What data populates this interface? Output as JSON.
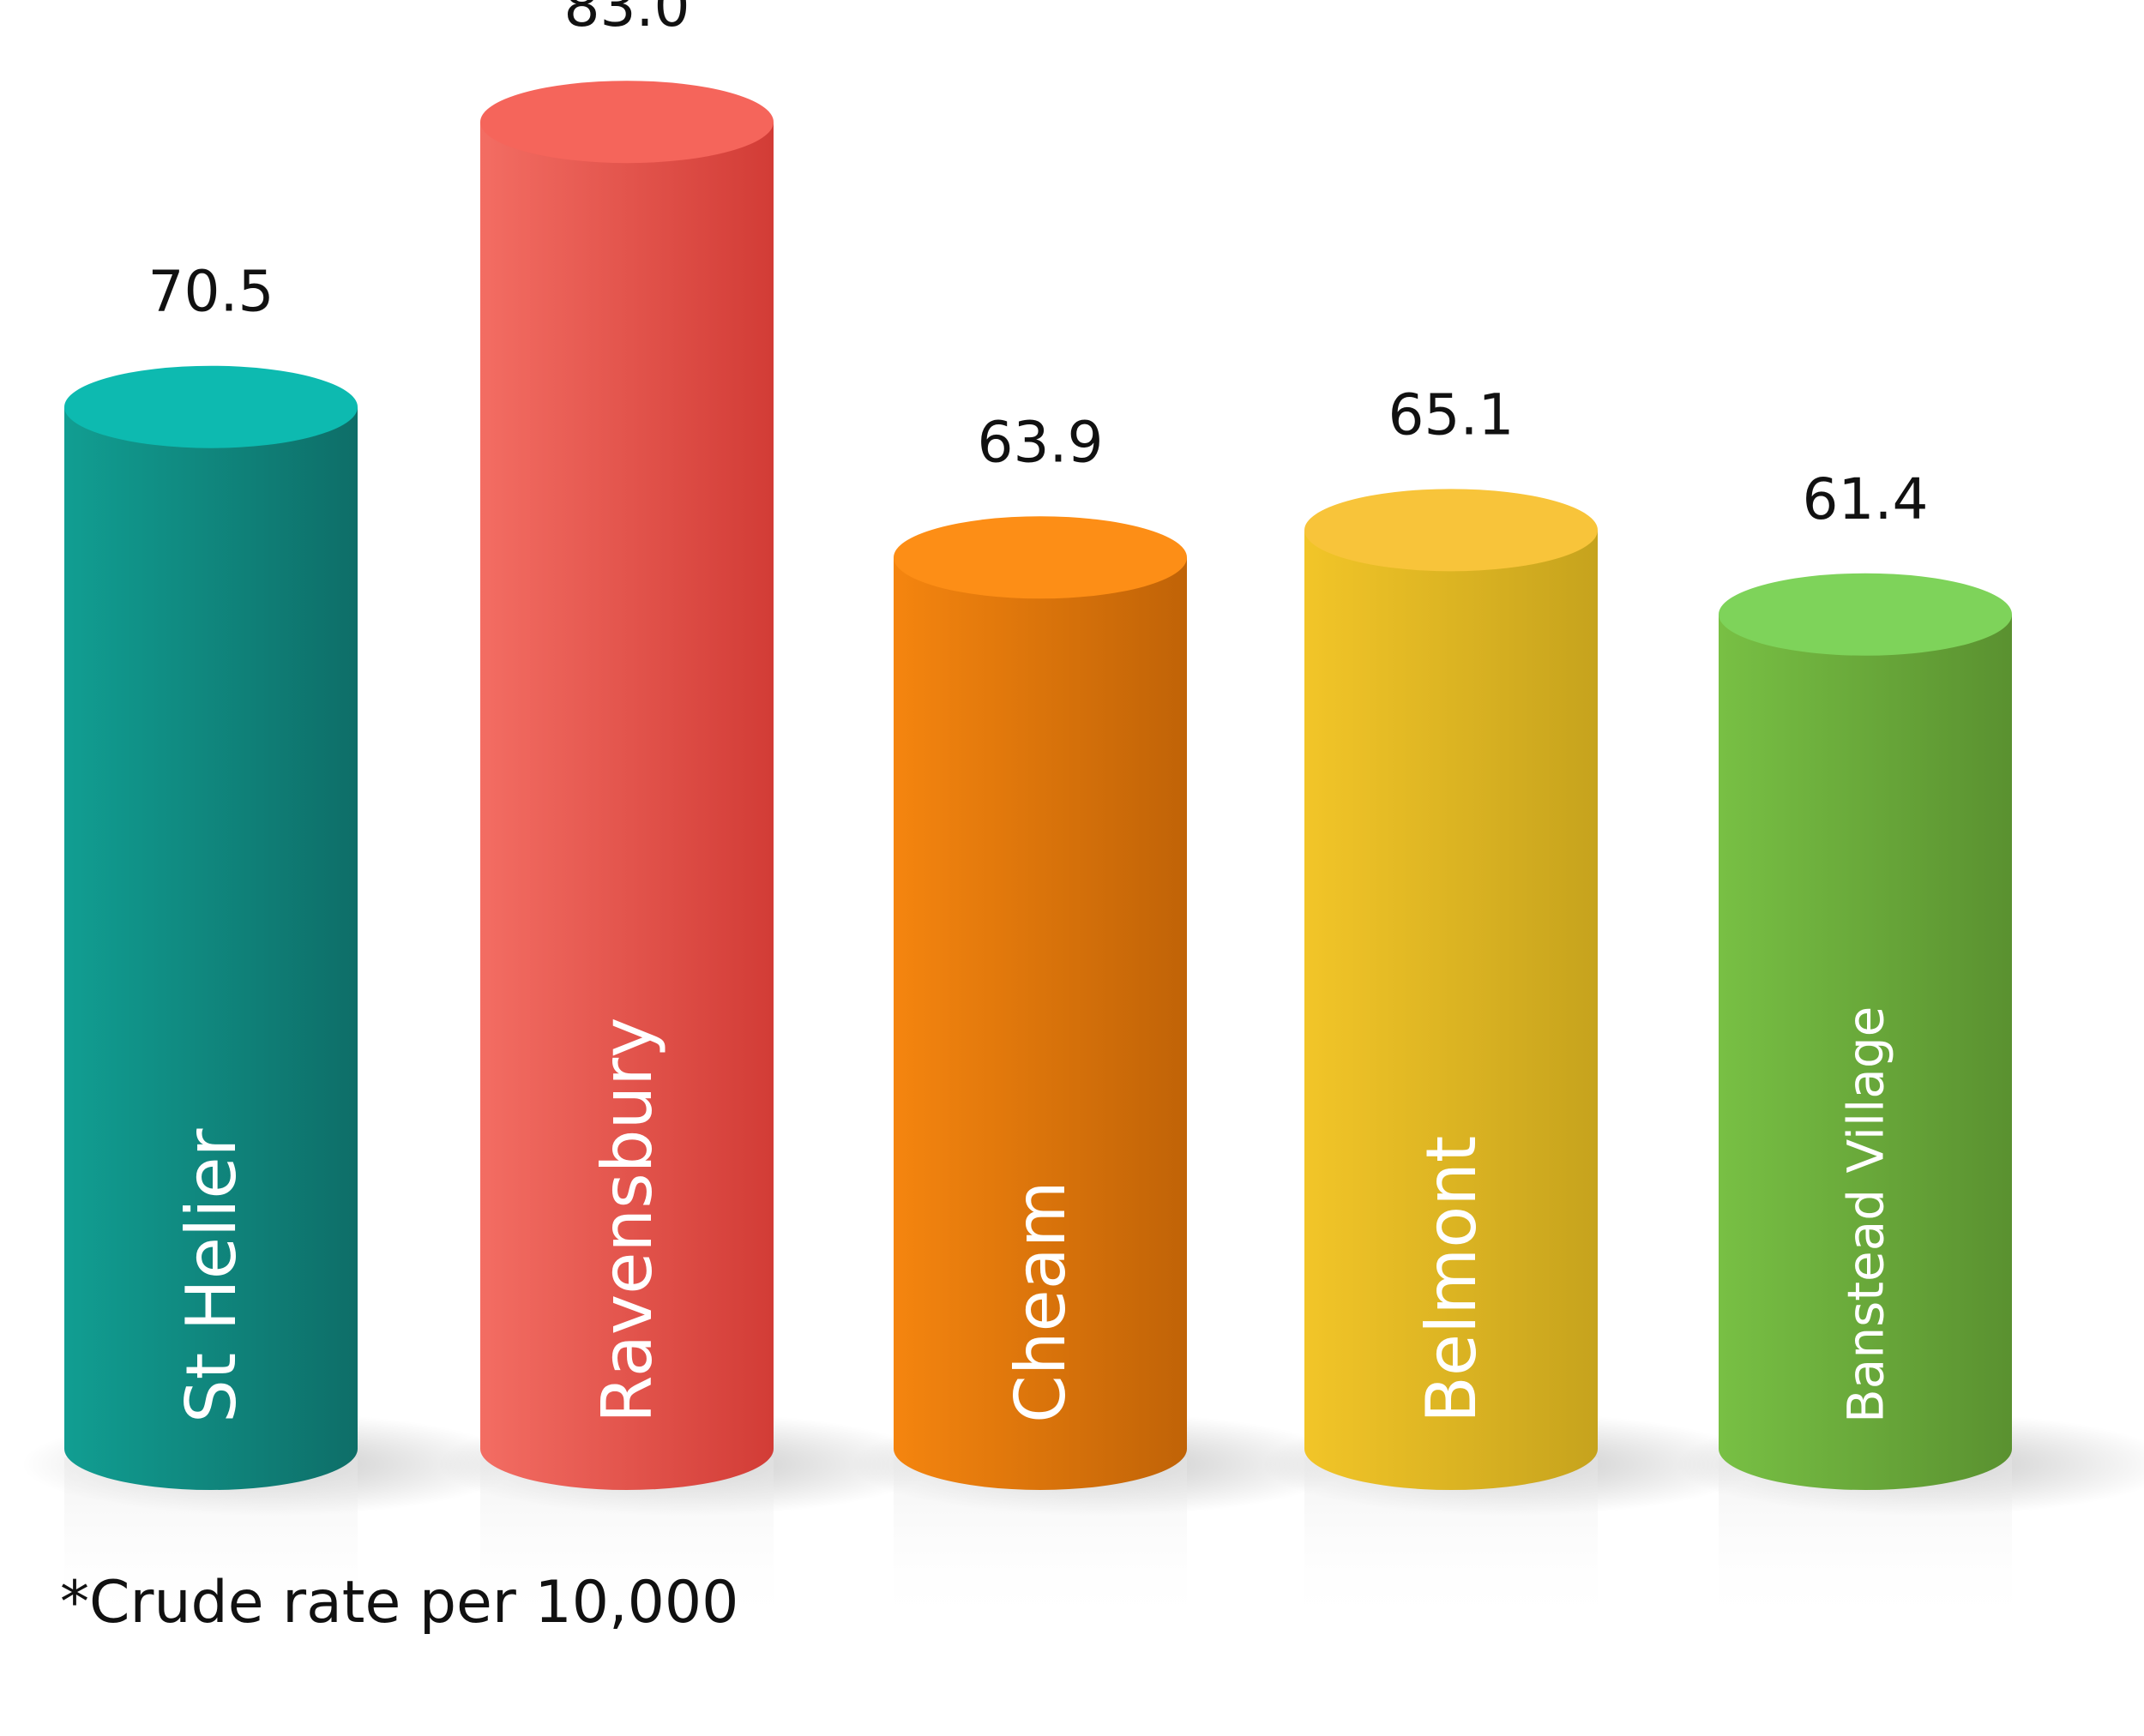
{
  "chart_data": {
    "type": "bar",
    "style": "3d-cylinder",
    "categories": [
      "St Helier",
      "Ravensbury",
      "Cheam",
      "Belmont",
      "Banstead Village"
    ],
    "values": [
      70.5,
      83.0,
      63.9,
      65.1,
      61.4
    ],
    "value_labels": [
      "70.5",
      "83.0",
      "63.9",
      "65.1",
      "61.4"
    ],
    "colors": [
      {
        "top": "#0dbab0",
        "left": "#119e92",
        "right": "#0e6e68"
      },
      {
        "top": "#f5655b",
        "left": "#f36d63",
        "right": "#d23c36"
      },
      {
        "top": "#fd8e16",
        "left": "#f5850f",
        "right": "#c06307"
      },
      {
        "top": "#f8c43a",
        "left": "#f2c528",
        "right": "#c6a31d"
      },
      {
        "top": "#7ed35a",
        "left": "#78c044",
        "right": "#5a9130"
      }
    ],
    "title": "",
    "xlabel": "",
    "ylabel": "",
    "grid": false,
    "legend": "none",
    "footnote": "*Crude rate per 10,000"
  }
}
